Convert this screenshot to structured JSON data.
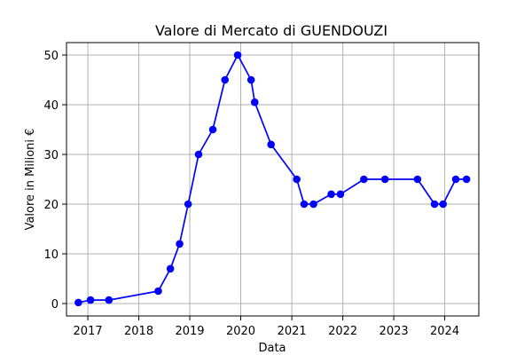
{
  "chart_data": {
    "type": "line",
    "title": "Valore di Mercato di GUENDOUZI",
    "xlabel": "Data",
    "ylabel": "Valore in Milioni €",
    "xlim": [
      "2016-08-01",
      "2024-09-01"
    ],
    "ylim": [
      -2.5,
      52.5
    ],
    "x_ticks": [
      "2017",
      "2018",
      "2019",
      "2020",
      "2021",
      "2022",
      "2023",
      "2024"
    ],
    "y_ticks": [
      0,
      10,
      20,
      30,
      40,
      50
    ],
    "grid": true,
    "colors": {
      "series": "#0000ff",
      "grid": "#b0b0b0",
      "axes": "#000000"
    },
    "series": [
      {
        "x": [
          "2016-10-25",
          "2017-01-20",
          "2017-06-01",
          "2018-05-20",
          "2018-08-15",
          "2018-10-20",
          "2018-12-20",
          "2019-03-05",
          "2019-06-15",
          "2019-09-10",
          "2019-12-10",
          "2020-03-15",
          "2020-04-10",
          "2020-08-05",
          "2021-02-05",
          "2021-03-30",
          "2021-06-05",
          "2021-10-10",
          "2021-12-15",
          "2022-06-01",
          "2022-10-30",
          "2023-06-20",
          "2023-10-20",
          "2023-12-20",
          "2024-03-20",
          "2024-06-05"
        ],
        "y": [
          0.2,
          0.7,
          0.7,
          2.5,
          7,
          12,
          20,
          30,
          35,
          45,
          50,
          45,
          40.5,
          32,
          25,
          20,
          20,
          22,
          22,
          25,
          25,
          25,
          20,
          20,
          25,
          25
        ]
      }
    ]
  }
}
